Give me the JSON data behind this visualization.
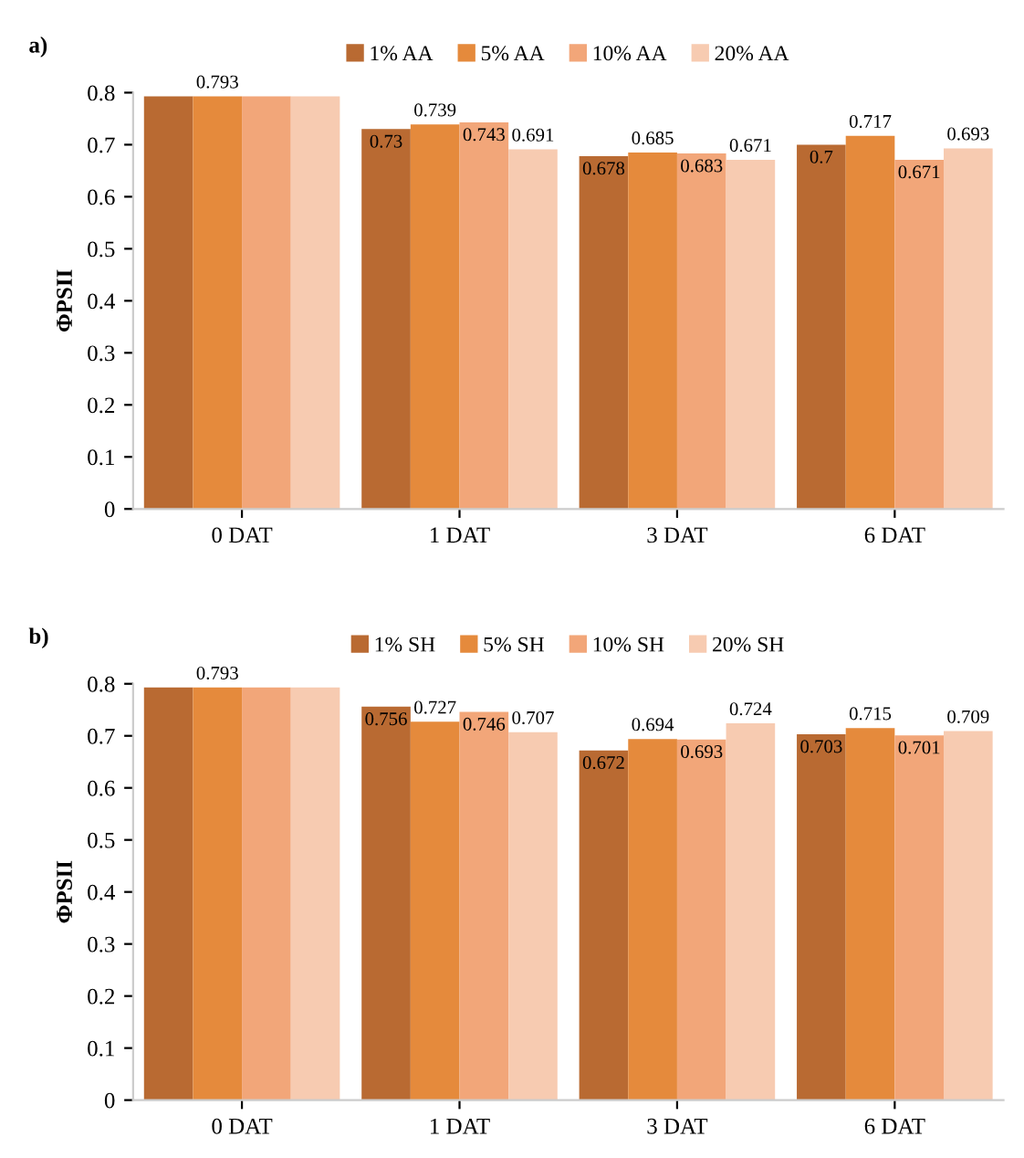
{
  "chart_data": [
    {
      "type": "bar",
      "title": "a)",
      "ylabel": "ΦPSII",
      "categories": [
        "0 DAT",
        "1 DAT",
        "3 DAT",
        "6 DAT"
      ],
      "ylim": [
        0,
        0.8
      ],
      "yticks": [
        0,
        0.1,
        0.2,
        0.3,
        0.4,
        0.5,
        0.6,
        0.7,
        0.8
      ],
      "legend": "top",
      "grid": false,
      "series": [
        {
          "name": "1% AA",
          "color": "#b96a32",
          "values": [
            0.793,
            0.73,
            0.678,
            0.7
          ],
          "value_labels": [
            null,
            "0.73",
            "0.678",
            "0.7"
          ]
        },
        {
          "name": "5% AA",
          "color": "#e58a3c",
          "values": [
            0.793,
            0.739,
            0.685,
            0.717
          ],
          "value_labels": [
            "0.793",
            "0.739",
            "0.685",
            "0.717"
          ]
        },
        {
          "name": "10% AA",
          "color": "#f2a679",
          "values": [
            0.793,
            0.743,
            0.683,
            0.671
          ],
          "value_labels": [
            null,
            "0.743",
            "0.683",
            "0.671"
          ]
        },
        {
          "name": "20% AA",
          "color": "#f7cbb1",
          "values": [
            0.793,
            0.691,
            0.671,
            0.693
          ],
          "value_labels": [
            null,
            "0.691",
            "0.671",
            "0.693"
          ]
        }
      ]
    },
    {
      "type": "bar",
      "title": "b)",
      "ylabel": "ΦPSII",
      "categories": [
        "0 DAT",
        "1 DAT",
        "3 DAT",
        "6 DAT"
      ],
      "ylim": [
        0,
        0.8
      ],
      "yticks": [
        0,
        0.1,
        0.2,
        0.3,
        0.4,
        0.5,
        0.6,
        0.7,
        0.8
      ],
      "legend": "top",
      "grid": false,
      "series": [
        {
          "name": "1% SH",
          "color": "#b96a32",
          "values": [
            0.793,
            0.756,
            0.672,
            0.703
          ],
          "value_labels": [
            null,
            "0.756",
            "0.672",
            "0.703"
          ]
        },
        {
          "name": "5% SH",
          "color": "#e58a3c",
          "values": [
            0.793,
            0.727,
            0.694,
            0.715
          ],
          "value_labels": [
            "0.793",
            "0.727",
            "0.694",
            "0.715"
          ]
        },
        {
          "name": "10% SH",
          "color": "#f2a679",
          "values": [
            0.793,
            0.746,
            0.693,
            0.701
          ],
          "value_labels": [
            null,
            "0.746",
            "0.693",
            "0.701"
          ]
        },
        {
          "name": "20% SH",
          "color": "#f7cbb1",
          "values": [
            0.793,
            0.707,
            0.724,
            0.709
          ],
          "value_labels": [
            null,
            "0.707",
            "0.724",
            "0.709"
          ]
        }
      ]
    }
  ]
}
